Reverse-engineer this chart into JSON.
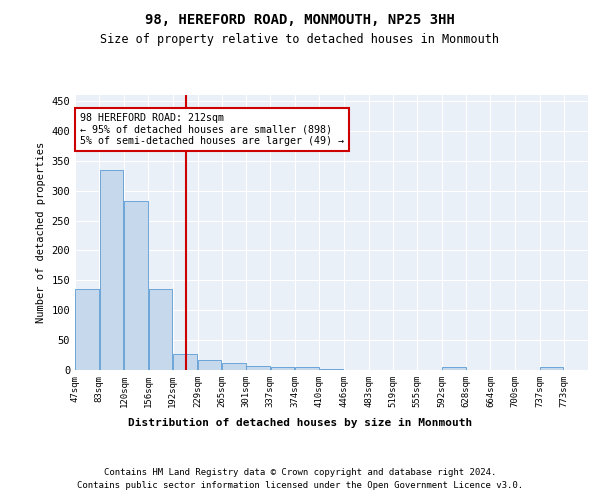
{
  "title": "98, HEREFORD ROAD, MONMOUTH, NP25 3HH",
  "subtitle": "Size of property relative to detached houses in Monmouth",
  "xlabel": "Distribution of detached houses by size in Monmouth",
  "ylabel": "Number of detached properties",
  "bar_color": "#c5d8ec",
  "bar_edge_color": "#5b9bd5",
  "background_color": "#eaf0f8",
  "grid_color": "#ffffff",
  "vline_x": 212,
  "vline_color": "#cc0000",
  "annotation_text": "98 HEREFORD ROAD: 212sqm\n← 95% of detached houses are smaller (898)\n5% of semi-detached houses are larger (49) →",
  "annotation_box_color": "#cc0000",
  "bin_edges": [
    47,
    83,
    120,
    156,
    192,
    229,
    265,
    301,
    337,
    374,
    410,
    446,
    483,
    519,
    555,
    592,
    628,
    664,
    700,
    737,
    773
  ],
  "bar_heights": [
    135,
    335,
    282,
    135,
    27,
    16,
    11,
    7,
    5,
    5,
    1,
    0,
    0,
    0,
    0,
    5,
    0,
    0,
    0,
    5
  ],
  "xlim_left": 47,
  "xlim_right": 809,
  "ylim_top": 460,
  "tick_labels": [
    "47sqm",
    "83sqm",
    "120sqm",
    "156sqm",
    "192sqm",
    "229sqm",
    "265sqm",
    "301sqm",
    "337sqm",
    "374sqm",
    "410sqm",
    "446sqm",
    "483sqm",
    "519sqm",
    "555sqm",
    "592sqm",
    "628sqm",
    "664sqm",
    "700sqm",
    "737sqm",
    "773sqm"
  ],
  "yticks": [
    0,
    50,
    100,
    150,
    200,
    250,
    300,
    350,
    400,
    450
  ],
  "footer1": "Contains HM Land Registry data © Crown copyright and database right 2024.",
  "footer2": "Contains public sector information licensed under the Open Government Licence v3.0."
}
